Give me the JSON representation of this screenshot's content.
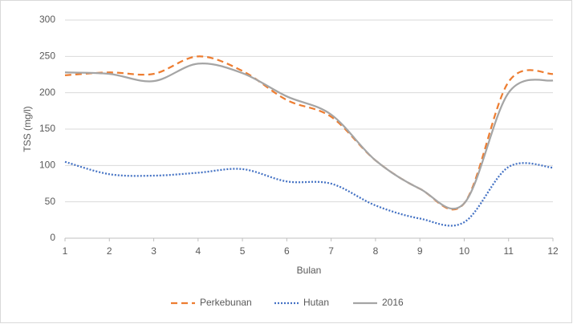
{
  "chart_data": {
    "type": "line",
    "y_label": "TSS (mg/l)",
    "x_label": "Bulan",
    "x": [
      1,
      2,
      3,
      4,
      5,
      6,
      7,
      8,
      9,
      10,
      11,
      12
    ],
    "series": [
      {
        "name": "Perkebunan",
        "color": "#ed7d31",
        "dash": "dashed",
        "values": [
          224,
          228,
          226,
          250,
          230,
          190,
          167,
          107,
          68,
          48,
          215,
          226
        ]
      },
      {
        "name": "Hutan",
        "color": "#4472c4",
        "dash": "dotted",
        "values": [
          105,
          88,
          86,
          90,
          95,
          78,
          75,
          45,
          27,
          22,
          98,
          97
        ]
      },
      {
        "name": "2016",
        "color": "#a5a5a5",
        "dash": "solid",
        "values": [
          228,
          226,
          216,
          240,
          227,
          195,
          170,
          107,
          68,
          48,
          200,
          217
        ]
      }
    ],
    "xlim": [
      1,
      12
    ],
    "xticks": [
      1,
      2,
      3,
      4,
      5,
      6,
      7,
      8,
      9,
      10,
      11,
      12
    ],
    "ylim": [
      0,
      300
    ],
    "yticks": [
      0,
      50,
      100,
      150,
      200,
      250,
      300
    ],
    "grid": true,
    "legend": "bottom"
  }
}
